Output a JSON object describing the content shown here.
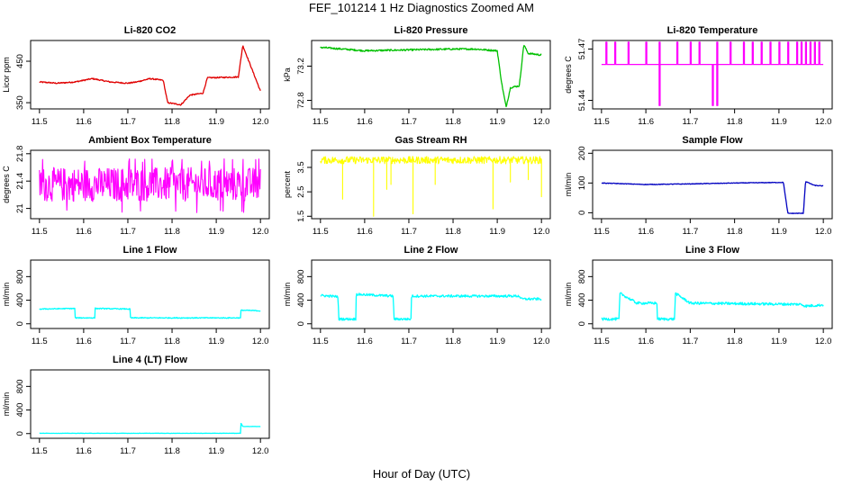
{
  "figure": {
    "title": "FEF_101214  1 Hz Diagnostics Zoomed AM",
    "xlabel": "Hour of Day (UTC)"
  },
  "chart_data": [
    {
      "type": "line",
      "title": "Li-820 CO2",
      "ylabel": "Licor ppm",
      "color": "#e00000",
      "xlim": [
        11.48,
        12.02
      ],
      "ylim": [
        335,
        500
      ],
      "yticks": [
        350,
        450
      ],
      "xticks": [
        11.5,
        11.6,
        11.7,
        11.8,
        11.9,
        12.0
      ],
      "noise": 1.5,
      "segments": [
        {
          "x": [
            11.5,
            11.54,
            11.58,
            11.62,
            11.66,
            11.7,
            11.72,
            11.75,
            11.78,
            11.79,
            11.82,
            11.84,
            11.87,
            11.88,
            11.95,
            11.96,
            12.0
          ],
          "y": [
            400,
            397,
            400,
            408,
            400,
            397,
            400,
            408,
            404,
            350,
            345,
            368,
            373,
            410,
            412,
            488,
            378
          ]
        }
      ]
    },
    {
      "type": "line",
      "title": "Li-820 Pressure",
      "ylabel": "kPa",
      "color": "#00c000",
      "xlim": [
        11.48,
        12.02
      ],
      "ylim": [
        72.7,
        73.5
      ],
      "yticks": [
        72.8,
        73.2
      ],
      "xticks": [
        11.5,
        11.6,
        11.7,
        11.8,
        11.9,
        12.0
      ],
      "noise": 0.01,
      "segments": [
        {
          "x": [
            11.5,
            11.55,
            11.6,
            11.7,
            11.8,
            11.85,
            11.9,
            11.91,
            11.92,
            11.93,
            11.95,
            11.96,
            11.97,
            12.0
          ],
          "y": [
            73.42,
            73.4,
            73.38,
            73.39,
            73.4,
            73.4,
            73.38,
            73.0,
            72.72,
            72.95,
            72.97,
            73.45,
            73.35,
            73.33
          ]
        }
      ]
    },
    {
      "type": "spikes",
      "title": "Li-820 Temperature",
      "ylabel": "degrees C",
      "color": "#ff00ff",
      "xlim": [
        11.48,
        12.02
      ],
      "ylim": [
        51.435,
        51.475
      ],
      "yticks": [
        51.44,
        51.47
      ],
      "xticks": [
        11.5,
        11.6,
        11.7,
        11.8,
        11.9,
        12.0
      ],
      "baseline": 51.461,
      "up": 51.474,
      "down": 51.437,
      "up_x": [
        11.51,
        11.53,
        11.56,
        11.6,
        11.63,
        11.67,
        11.7,
        11.72,
        11.76,
        11.79,
        11.82,
        11.84,
        11.86,
        11.88,
        11.9,
        11.92,
        11.94,
        11.95,
        11.96,
        11.97,
        11.98,
        11.99
      ],
      "down_x": [
        11.63,
        11.75,
        11.76
      ]
    },
    {
      "type": "noise",
      "title": "Ambient Box Temperature",
      "ylabel": "degrees C",
      "color": "#ff00ff",
      "xlim": [
        11.48,
        12.02
      ],
      "ylim": [
        20.85,
        21.85
      ],
      "yticks": [
        21.0,
        21.4,
        21.8
      ],
      "xticks": [
        11.5,
        11.6,
        11.7,
        11.8,
        11.9,
        12.0
      ],
      "center": 21.35,
      "amp": 0.25,
      "outliers": [
        20.95,
        21.7
      ]
    },
    {
      "type": "noise",
      "title": "Gas Stream RH",
      "ylabel": "percent",
      "color": "#ffff00",
      "xlim": [
        11.48,
        12.02
      ],
      "ylim": [
        1.4,
        4.2
      ],
      "yticks": [
        1.5,
        2.5,
        3.5
      ],
      "xticks": [
        11.5,
        11.6,
        11.7,
        11.8,
        11.9,
        12.0
      ],
      "center": 3.8,
      "amp": 0.15,
      "dips": [
        [
          11.55,
          2.2
        ],
        [
          11.62,
          1.5
        ],
        [
          11.65,
          2.6
        ],
        [
          11.66,
          2.8
        ],
        [
          11.71,
          1.6
        ],
        [
          11.76,
          2.8
        ],
        [
          11.89,
          1.8
        ],
        [
          11.93,
          2.9
        ],
        [
          11.97,
          3.0
        ],
        [
          12.0,
          2.3
        ]
      ]
    },
    {
      "type": "line",
      "title": "Sample Flow",
      "ylabel": "ml/min",
      "color": "#0000c0",
      "xlim": [
        11.48,
        12.02
      ],
      "ylim": [
        -20,
        210
      ],
      "yticks": [
        0,
        100,
        200
      ],
      "xticks": [
        11.5,
        11.6,
        11.7,
        11.8,
        11.9,
        12.0
      ],
      "noise": 1,
      "segments": [
        {
          "x": [
            11.5,
            11.6,
            11.7,
            11.8,
            11.91,
            11.92,
            11.955,
            11.96,
            11.98,
            12.0
          ],
          "y": [
            100,
            95,
            97,
            100,
            102,
            -2,
            -2,
            105,
            92,
            90
          ]
        }
      ]
    },
    {
      "type": "line",
      "title": "Line 1 Flow",
      "ylabel": "ml/min",
      "color": "#00ffff",
      "xlim": [
        11.48,
        12.02
      ],
      "ylim": [
        -80,
        1080
      ],
      "yticks": [
        0,
        400,
        800
      ],
      "xticks": [
        11.5,
        11.6,
        11.7,
        11.8,
        11.9,
        12.0
      ],
      "noise": 8,
      "segments": [
        {
          "x": [
            11.5,
            11.58,
            11.581,
            11.625,
            11.626,
            11.705,
            11.706,
            11.955,
            11.956,
            12.0
          ],
          "y": [
            250,
            260,
            100,
            100,
            260,
            250,
            100,
            100,
            230,
            220
          ]
        }
      ]
    },
    {
      "type": "line",
      "title": "Line 2 Flow",
      "ylabel": "ml/min",
      "color": "#00ffff",
      "xlim": [
        11.48,
        12.02
      ],
      "ylim": [
        -80,
        1080
      ],
      "yticks": [
        0,
        400,
        800
      ],
      "xticks": [
        11.5,
        11.6,
        11.7,
        11.8,
        11.9,
        12.0
      ],
      "noise": 20,
      "segments": [
        {
          "x": [
            11.5,
            11.54,
            11.541,
            11.58,
            11.581,
            11.665,
            11.666,
            11.705,
            11.706,
            11.95,
            11.955,
            12.0
          ],
          "y": [
            480,
            460,
            80,
            80,
            500,
            470,
            80,
            80,
            470,
            470,
            420,
            420
          ]
        }
      ]
    },
    {
      "type": "line",
      "title": "Line 3 Flow",
      "ylabel": "ml/min",
      "color": "#00ffff",
      "xlim": [
        11.48,
        12.02
      ],
      "ylim": [
        -80,
        1080
      ],
      "yticks": [
        0,
        400,
        800
      ],
      "xticks": [
        11.5,
        11.6,
        11.7,
        11.8,
        11.9,
        12.0
      ],
      "noise": 22,
      "segments": [
        {
          "x": [
            11.5,
            11.54,
            11.541,
            11.58,
            11.625,
            11.626,
            11.665,
            11.666,
            11.7,
            11.95,
            11.96,
            12.0
          ],
          "y": [
            80,
            80,
            520,
            350,
            350,
            80,
            80,
            520,
            350,
            330,
            300,
            320
          ]
        }
      ]
    },
    {
      "type": "line",
      "title": "Line 4 (LT) Flow",
      "ylabel": "ml/min",
      "color": "#00ffff",
      "xlim": [
        11.48,
        12.02
      ],
      "ylim": [
        -80,
        1080
      ],
      "yticks": [
        0,
        400,
        800
      ],
      "xticks": [
        11.5,
        11.6,
        11.7,
        11.8,
        11.9,
        12.0
      ],
      "noise": 2,
      "segments": [
        {
          "x": [
            11.5,
            11.955,
            11.956,
            11.96,
            12.0
          ],
          "y": [
            5,
            5,
            180,
            120,
            120
          ]
        }
      ]
    }
  ]
}
